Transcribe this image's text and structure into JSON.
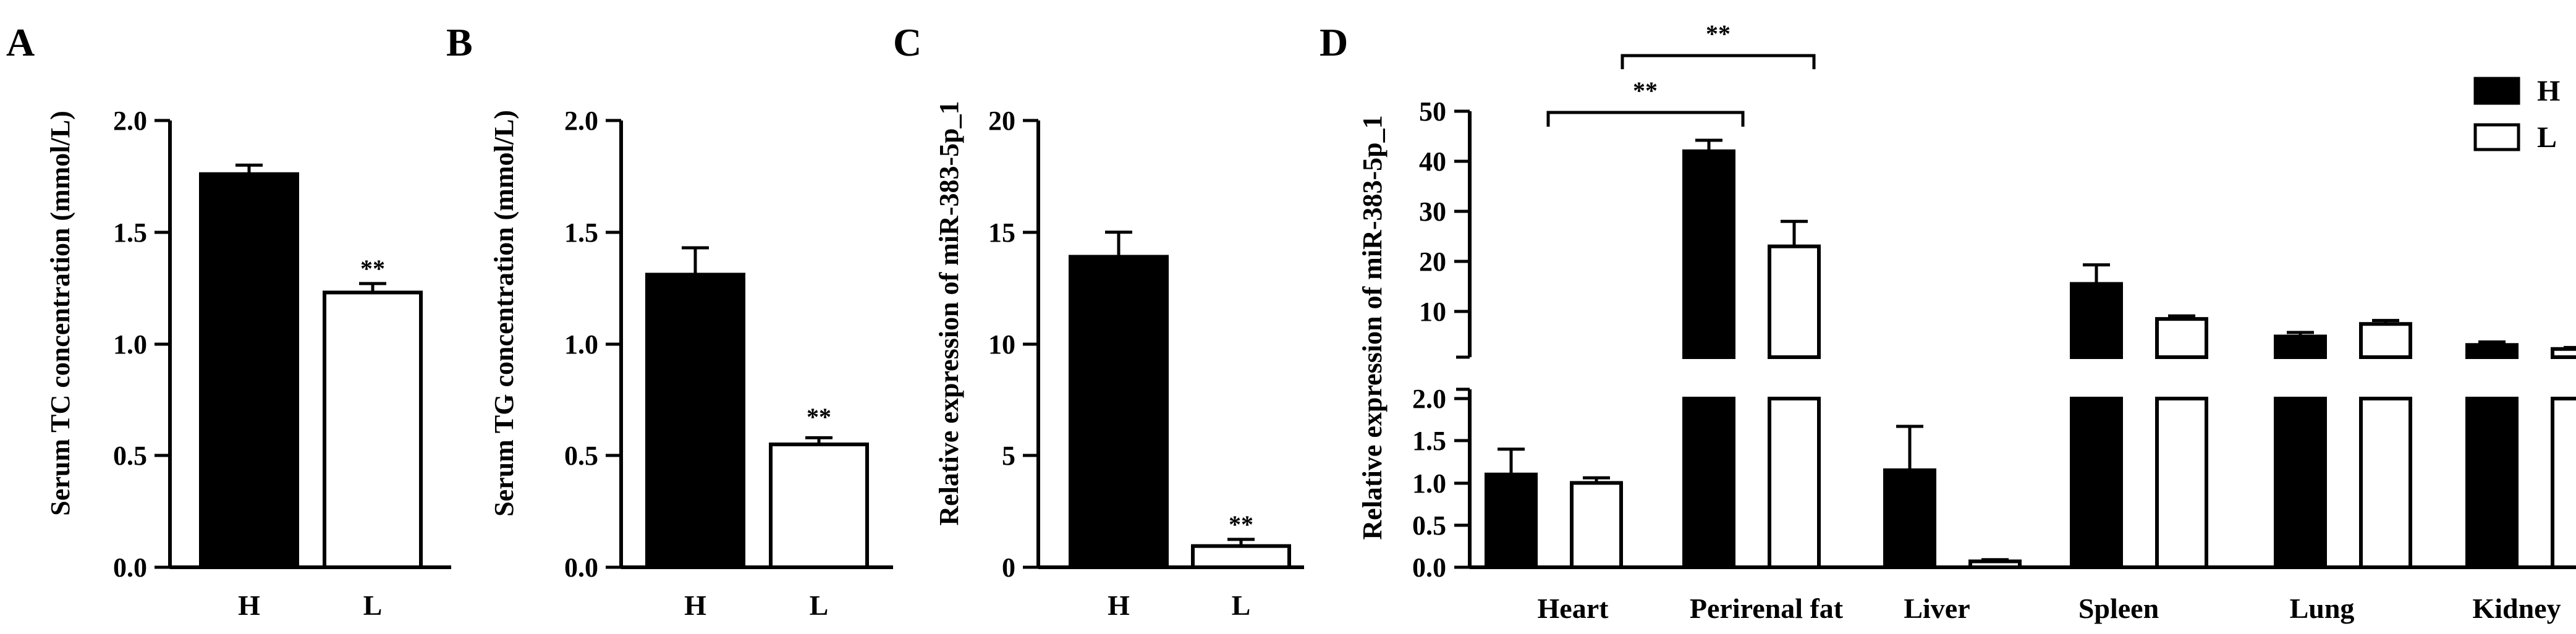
{
  "chart_data": [
    {
      "panel": "A",
      "type": "bar",
      "categories": [
        "H",
        "L"
      ],
      "values": [
        1.76,
        1.23
      ],
      "errors": [
        0.04,
        0.04
      ],
      "annotations": [
        "",
        "**"
      ],
      "ylabel": "Serum TC concentration (mmol/L)",
      "ylim": [
        0,
        2.0
      ],
      "yticks": [
        "0.0",
        "0.5",
        "1.0",
        "1.5",
        "2.0"
      ],
      "bar_colors": [
        "#000000",
        "#ffffff"
      ]
    },
    {
      "panel": "B",
      "type": "bar",
      "categories": [
        "H",
        "L"
      ],
      "values": [
        1.31,
        0.55
      ],
      "errors": [
        0.12,
        0.03
      ],
      "annotations": [
        "",
        "**"
      ],
      "ylabel": "Serum TG concentration (mmol/L)",
      "ylim": [
        0,
        2.0
      ],
      "yticks": [
        "0.0",
        "0.5",
        "1.0",
        "1.5",
        "2.0"
      ],
      "bar_colors": [
        "#000000",
        "#ffffff"
      ]
    },
    {
      "panel": "C",
      "type": "bar",
      "categories": [
        "H",
        "L"
      ],
      "values": [
        13.9,
        0.95
      ],
      "errors": [
        1.1,
        0.3
      ],
      "annotations": [
        "",
        "**"
      ],
      "ylabel": "Relative expression of miR-383-5p_1",
      "ylim": [
        0,
        20
      ],
      "yticks": [
        "0",
        "5",
        "10",
        "15",
        "20"
      ],
      "bar_colors": [
        "#000000",
        "#ffffff"
      ]
    },
    {
      "panel": "D",
      "type": "bar",
      "categories": [
        "Heart",
        "Perirenal fat",
        "Liver",
        "Spleen",
        "Lung",
        "Kidney"
      ],
      "series": [
        {
          "name": "H",
          "values": [
            1.1,
            42.0,
            1.15,
            15.5,
            5.0,
            3.3
          ],
          "errors": [
            0.3,
            2.2,
            0.52,
            3.8,
            0.8,
            0.6
          ],
          "color": "#000000"
        },
        {
          "name": "L",
          "values": [
            1.0,
            23.0,
            0.07,
            8.5,
            7.5,
            2.5
          ],
          "errors": [
            0.06,
            5.0,
            0.02,
            0.6,
            0.7,
            0.3
          ],
          "color": "#ffffff"
        }
      ],
      "ylabel": "Relative expression of miR-383-5p_1",
      "axis_break": true,
      "ylim_lower": [
        0,
        2.0
      ],
      "yticks_lower": [
        "0.0",
        "0.5",
        "1.0",
        "1.5",
        "2.0"
      ],
      "ylim_upper": [
        0,
        50
      ],
      "yticks_upper": [
        "10",
        "20",
        "30",
        "40",
        "50"
      ],
      "legend": {
        "entries": [
          "H",
          "L"
        ],
        "placement": "top-right"
      },
      "significance": [
        {
          "from": "Heart",
          "to": "Perirenal fat",
          "label": "**"
        },
        {
          "from": "Heart L",
          "to": "Perirenal fat L",
          "label": "**"
        }
      ]
    }
  ]
}
